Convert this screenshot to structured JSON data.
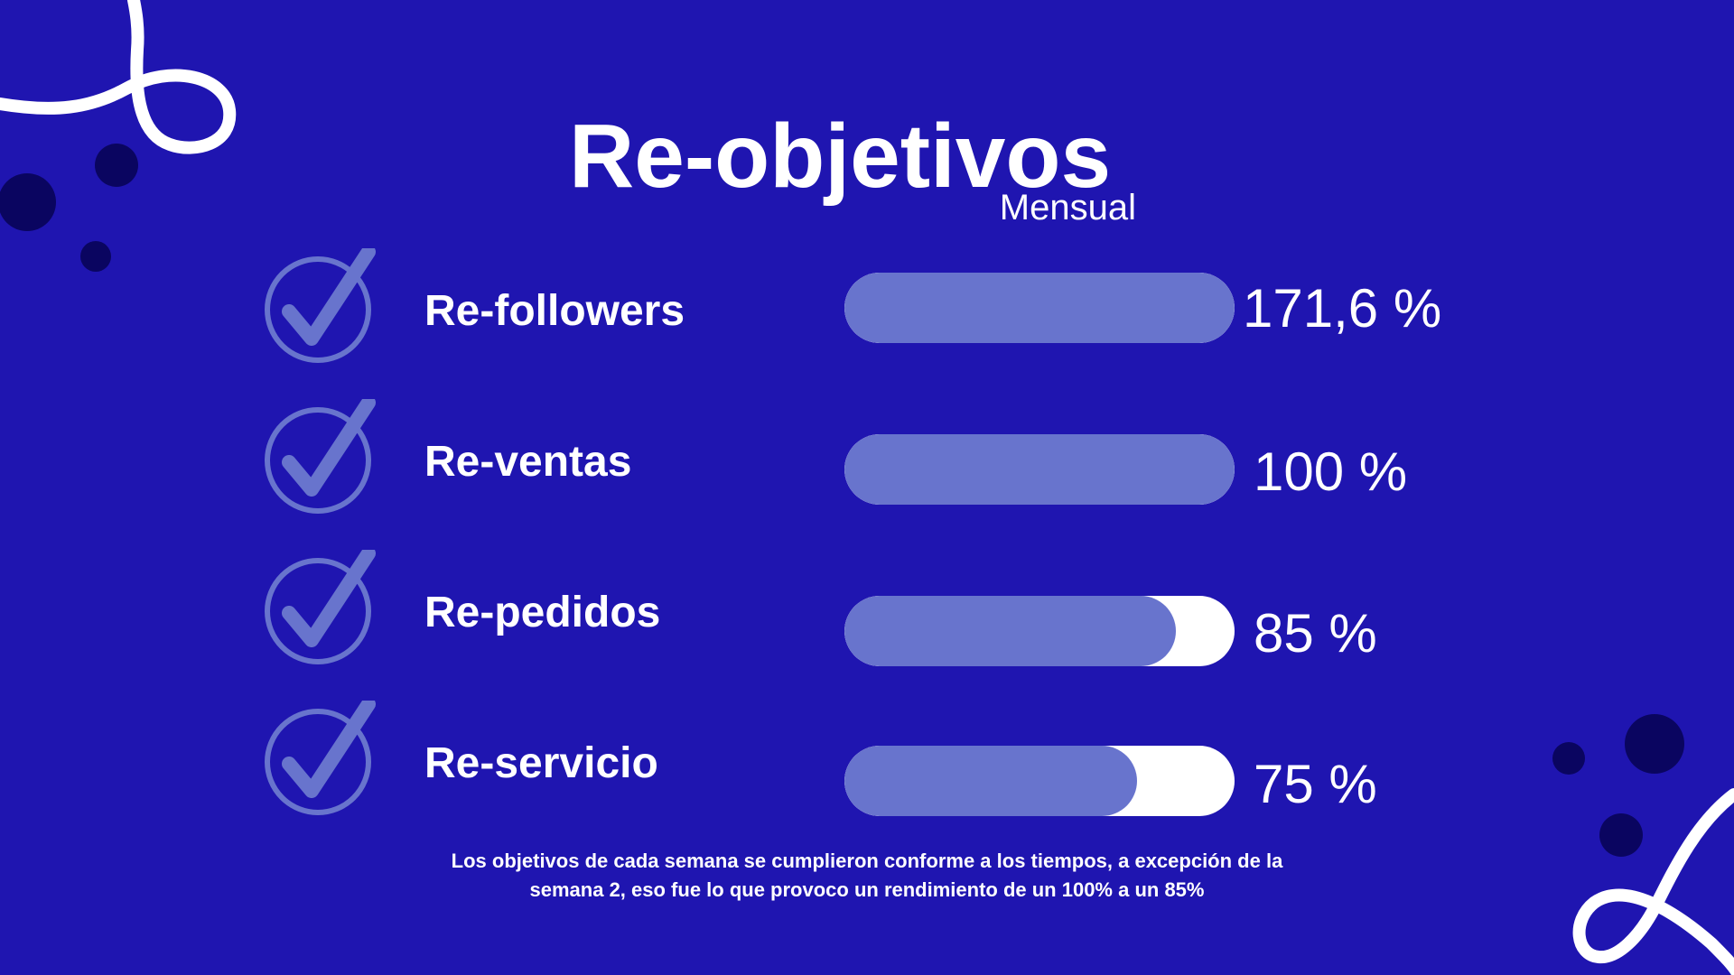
{
  "header": {
    "title": "Re-objetivos",
    "subtitle": "Mensual"
  },
  "metrics": [
    {
      "label": "Re-followers",
      "value_text": "171,6 %",
      "fill_fraction": 1.0
    },
    {
      "label": "Re-ventas",
      "value_text": "100 %",
      "fill_fraction": 1.0
    },
    {
      "label": "Re-pedidos",
      "value_text": "85 %",
      "fill_fraction": 0.85
    },
    {
      "label": "Re-servicio",
      "value_text": "75 %",
      "fill_fraction": 0.75
    }
  ],
  "footnote": {
    "line1": "Los objetivos de cada semana se cumplieron conforme a  los tiempos, a excepción de la",
    "line2": "semana 2, eso fue lo que provoco un rendimiento de un 100% a un 85%"
  },
  "colors": {
    "background": "#1f15b0",
    "bar_fill": "#6874cd",
    "bar_track": "#ffffff",
    "check": "#6874cd",
    "dots": "#0a0560",
    "text": "#ffffff"
  },
  "icons": {
    "check": "check-circle-icon"
  }
}
